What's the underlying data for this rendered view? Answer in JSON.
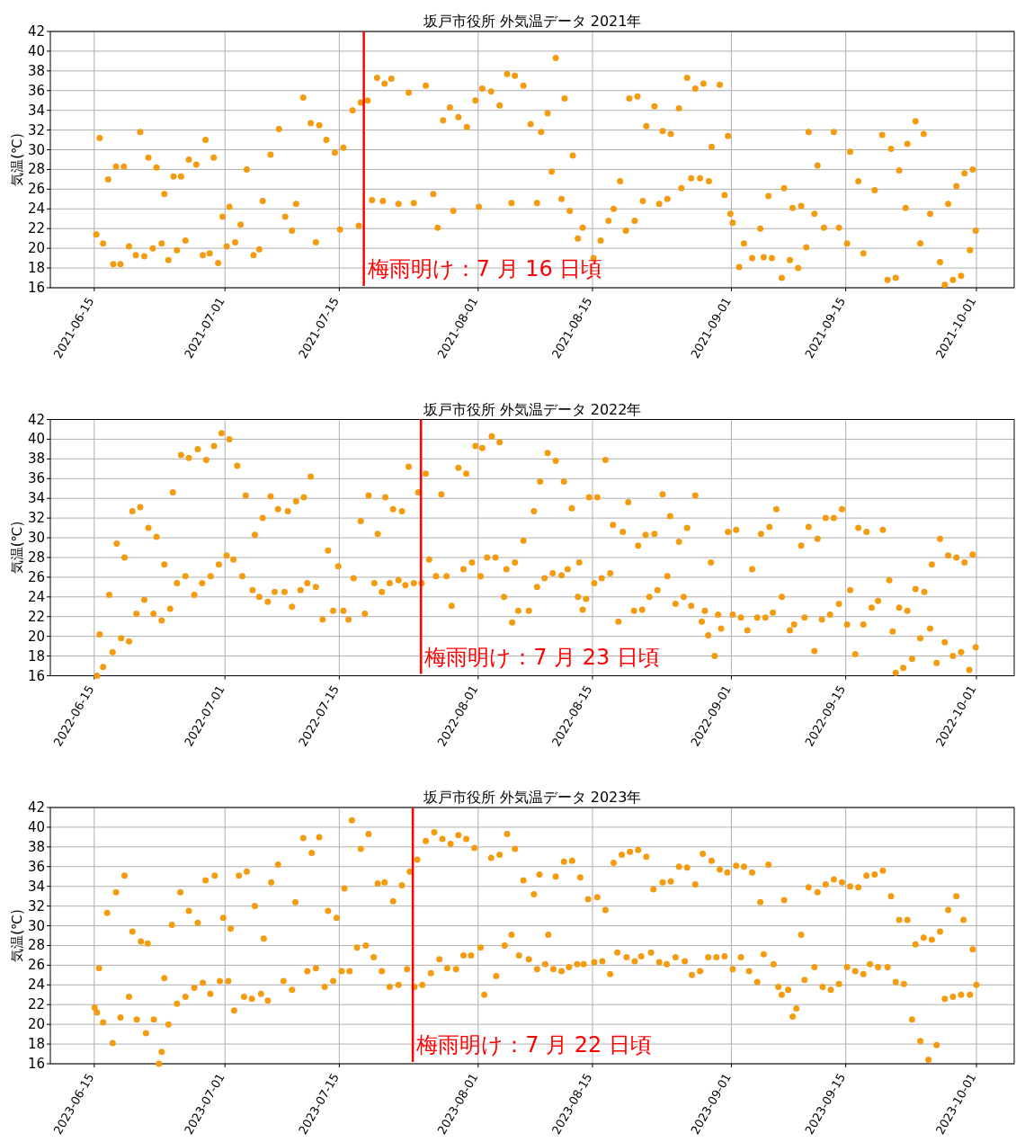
{
  "chart_data": [
    {
      "type": "scatter",
      "title": "坂戸市役所 外気温データ 2021年",
      "ylabel": "気温(℃)",
      "color": "#f39c12",
      "marker": "circle",
      "grid": true,
      "xlim": [
        "2021-06-09T15:00",
        "2021-10-05T15:00"
      ],
      "xticks": [
        "2021-06-15",
        "2021-07-01",
        "2021-07-15",
        "2021-08-01",
        "2021-08-15",
        "2021-09-01",
        "2021-09-15",
        "2021-10-01"
      ],
      "ylim": [
        16,
        42
      ],
      "yticks": [
        16,
        18,
        20,
        22,
        24,
        26,
        28,
        30,
        32,
        34,
        36,
        38,
        40,
        42
      ],
      "ref_lines": [
        {
          "axis": "x",
          "value": "2021-07-18",
          "label": "梅雨明け：7 月 16 日頃",
          "color": "#ff0000"
        }
      ],
      "x": [
        "2021-06-15T06:00",
        "2021-06-15T16:00",
        "2021-06-16T02:00",
        "2021-06-16T17:00",
        "2021-06-17T08:00",
        "2021-06-17T16:00",
        "2021-06-18T05:00",
        "2021-06-18T15:00",
        "2021-06-19T06:00",
        "2021-06-20T02:00",
        "2021-06-20T15:00",
        "2021-06-21T03:00",
        "2021-06-21T15:00",
        "2021-06-22T04:00",
        "2021-06-22T15:00",
        "2021-06-23T06:00",
        "2021-06-23T14:00",
        "2021-06-24T02:00",
        "2021-06-24T17:00",
        "2021-06-25T03:00",
        "2021-06-25T15:00",
        "2021-06-26T04:00",
        "2021-06-26T14:00",
        "2021-06-27T12:00",
        "2021-06-28T07:00",
        "2021-06-28T15:00",
        "2021-06-29T03:00",
        "2021-06-29T15:00",
        "2021-06-30T04:00",
        "2021-06-30T17:00",
        "2021-07-01T05:00",
        "2021-07-01T13:00",
        "2021-07-02T06:00",
        "2021-07-02T22:00",
        "2021-07-03T16:00",
        "2021-07-04T12:00",
        "2021-07-05T05:00",
        "2021-07-05T15:00",
        "2021-07-06T14:00",
        "2021-07-07T15:00",
        "2021-07-08T09:00",
        "2021-07-09T05:00",
        "2021-07-09T17:00",
        "2021-07-10T14:00",
        "2021-07-11T12:00",
        "2021-07-12T03:00",
        "2021-07-12T13:00",
        "2021-07-13T10:00",
        "2021-07-14T11:00",
        "2021-07-15T02:00",
        "2021-07-15T12:00",
        "2021-07-16T15:00",
        "2021-07-17T09:00",
        "2021-07-17T15:00",
        "2021-07-18T11:00",
        "2021-07-19T00:00",
        "2021-07-19T15:00",
        "2021-07-20T08:00",
        "2021-07-20T13:00",
        "2021-07-21T09:00",
        "2021-07-22T06:00",
        "2021-07-23T12:00",
        "2021-07-24T03:00",
        "2021-07-25T14:00",
        "2021-07-26T12:00",
        "2021-07-27T01:00",
        "2021-07-27T17:00",
        "2021-07-28T13:00",
        "2021-07-28T23:00",
        "2021-07-29T14:00",
        "2021-07-30T15:00",
        "2021-07-31T16:00",
        "2021-08-01T02:00",
        "2021-08-01T12:00",
        "2021-08-02T14:00",
        "2021-08-03T15:00",
        "2021-08-04T13:00",
        "2021-08-05T02:00",
        "2021-08-05T12:00",
        "2021-08-06T13:00",
        "2021-08-07T10:00",
        "2021-08-08T05:00",
        "2021-08-08T17:00",
        "2021-08-09T12:00",
        "2021-08-10T00:00",
        "2021-08-10T12:00",
        "2021-08-11T05:00",
        "2021-08-11T14:00",
        "2021-08-12T05:00",
        "2021-08-12T14:00",
        "2021-08-13T05:00",
        "2021-08-13T19:00",
        "2021-08-15T03:00",
        "2021-08-16T00:00",
        "2021-08-16T23:00",
        "2021-08-17T14:00",
        "2021-08-18T09:00",
        "2021-08-19T02:00",
        "2021-08-19T12:00",
        "2021-08-20T04:00",
        "2021-08-20T12:00",
        "2021-08-21T04:00",
        "2021-08-21T14:00",
        "2021-08-22T14:00",
        "2021-08-23T04:00",
        "2021-08-23T14:00",
        "2021-08-24T04:00",
        "2021-08-24T14:00",
        "2021-08-25T14:00",
        "2021-08-25T21:00",
        "2021-08-26T14:00",
        "2021-08-27T02:00",
        "2021-08-27T14:00",
        "2021-08-28T04:00",
        "2021-08-28T14:00",
        "2021-08-29T06:00",
        "2021-08-29T14:00",
        "2021-08-30T14:00",
        "2021-08-31T04:00",
        "2021-08-31T14:00",
        "2021-08-31T21:00",
        "2021-09-01T04:00",
        "2021-09-01T23:00",
        "2021-09-02T13:00",
        "2021-09-03T13:00",
        "2021-09-04T13:00",
        "2021-09-04T23:00",
        "2021-09-05T13:00",
        "2021-09-05T23:00",
        "2021-09-07T04:00",
        "2021-09-07T11:00",
        "2021-09-08T04:00",
        "2021-09-08T12:00",
        "2021-09-09T04:00",
        "2021-09-09T13:00",
        "2021-09-10T04:00",
        "2021-09-10T11:00",
        "2021-09-11T04:00",
        "2021-09-11T13:00",
        "2021-09-12T08:00",
        "2021-09-13T13:00",
        "2021-09-14T04:00",
        "2021-09-15T04:00",
        "2021-09-15T13:00",
        "2021-09-16T13:00",
        "2021-09-17T04:00",
        "2021-09-18T13:00",
        "2021-09-19T11:00",
        "2021-09-20T03:00",
        "2021-09-20T13:00",
        "2021-09-21T03:00",
        "2021-09-21T13:00",
        "2021-09-22T08:00",
        "2021-09-22T13:00",
        "2021-09-23T13:00",
        "2021-09-24T03:00",
        "2021-09-24T13:00",
        "2021-09-25T08:00",
        "2021-09-26T13:00",
        "2021-09-27T03:00",
        "2021-09-27T13:00",
        "2021-09-28T03:00",
        "2021-09-28T13:00",
        "2021-09-29T03:00",
        "2021-09-29T13:00",
        "2021-09-30T05:00",
        "2021-09-30T13:00",
        "2021-09-30T22:00"
      ],
      "values": [
        21.4,
        31.2,
        20.5,
        27,
        18.4,
        28.3,
        18.4,
        28.3,
        20.2,
        19.3,
        31.8,
        19.2,
        29.2,
        20,
        28.2,
        20.5,
        25.5,
        18.8,
        27.3,
        19.8,
        27.3,
        20.8,
        29,
        28.5,
        19.3,
        31,
        19.5,
        29.2,
        18.5,
        23.2,
        20.2,
        24.2,
        20.6,
        22.4,
        28,
        19.3,
        19.9,
        24.8,
        29.5,
        32.1,
        23.2,
        21.8,
        24.5,
        35.3,
        32.7,
        20.6,
        32.5,
        31,
        29.7,
        21.9,
        30.2,
        34,
        22.3,
        34.8,
        35,
        24.9,
        37.3,
        24.8,
        36.7,
        37.2,
        24.5,
        35.8,
        24.6,
        36.5,
        25.5,
        22.1,
        33,
        34.3,
        23.8,
        33.3,
        32.3,
        35,
        24.2,
        36.2,
        35.9,
        34.5,
        37.7,
        24.6,
        37.5,
        36.5,
        32.6,
        24.6,
        31.8,
        33.7,
        27.8,
        39.3,
        25,
        35.2,
        23.8,
        29.4,
        21,
        22.1,
        19,
        20.8,
        22.8,
        24,
        26.8,
        21.8,
        35.2,
        22.8,
        35.4,
        24.8,
        32.4,
        34.4,
        24.5,
        31.9,
        25,
        31.6,
        34.2,
        26.1,
        37.3,
        27.1,
        36.2,
        27.1,
        36.7,
        26.8,
        30.3,
        36.6,
        25.4,
        31.4,
        23.5,
        22.6,
        18.1,
        20.5,
        19,
        22,
        19.1,
        25.3,
        19,
        17,
        26.1,
        18.8,
        24.1,
        18,
        24.3,
        20.1,
        31.8,
        23.5,
        28.4,
        22.1,
        31.8,
        22.1,
        20.5,
        29.8,
        26.8,
        19.5,
        25.9,
        31.5,
        16.8,
        30.1,
        17,
        27.9,
        24.1,
        30.6,
        32.9,
        20.5,
        31.6,
        23.5,
        18.6,
        16.3,
        24.5,
        16.8,
        26.3,
        17.2,
        27.6,
        19.8,
        28,
        21.8
      ]
    },
    {
      "type": "scatter",
      "title": "坂戸市役所 外気温データ 2022年",
      "ylabel": "気温(℃)",
      "color": "#f39c12",
      "marker": "circle",
      "grid": true,
      "xlim": [
        "2022-06-09T15:00",
        "2022-10-05T15:00"
      ],
      "xticks": [
        "2022-06-15",
        "2022-07-01",
        "2022-07-15",
        "2022-08-01",
        "2022-08-15",
        "2022-09-01",
        "2022-09-15",
        "2022-10-01"
      ],
      "ylim": [
        16,
        42
      ],
      "yticks": [
        16,
        18,
        20,
        22,
        24,
        26,
        28,
        30,
        32,
        34,
        36,
        38,
        40,
        42
      ],
      "ref_lines": [
        {
          "axis": "x",
          "value": "2022-07-25",
          "label": "梅雨明け：7 月 23 日頃",
          "color": "#ff0000"
        }
      ],
      "x": [
        "2022-06-15T08:00",
        "2022-06-15T16:00",
        "2022-06-16T02:00",
        "2022-06-16T20:00",
        "2022-06-17T06:00",
        "2022-06-17T18:00",
        "2022-06-18T07:00",
        "2022-06-18T17:00",
        "2022-06-19T06:00",
        "2022-06-19T16:00",
        "2022-06-20T04:00",
        "2022-06-20T15:00",
        "2022-06-21T03:00",
        "2022-06-21T15:00",
        "2022-06-22T06:00",
        "2022-06-22T15:00",
        "2022-06-23T06:00",
        "2022-06-23T14:00",
        "2022-06-24T07:00",
        "2022-06-24T15:00",
        "2022-06-25T03:00",
        "2022-06-25T15:00",
        "2022-06-26T04:00",
        "2022-06-26T14:00",
        "2022-06-27T06:00",
        "2022-06-27T16:00",
        "2022-06-28T05:00",
        "2022-06-28T17:00",
        "2022-06-29T06:00",
        "2022-06-29T16:00",
        "2022-06-30T06:00",
        "2022-06-30T14:00",
        "2022-07-01T05:00",
        "2022-07-01T13:00",
        "2022-07-02T01:00",
        "2022-07-02T12:00",
        "2022-07-03T03:00",
        "2022-07-03T13:00",
        "2022-07-04T09:00",
        "2022-07-04T16:00",
        "2022-07-05T05:00",
        "2022-07-05T15:00",
        "2022-07-06T06:00",
        "2022-07-06T14:00",
        "2022-07-07T02:00",
        "2022-07-07T12:00",
        "2022-07-08T07:00",
        "2022-07-08T17:00",
        "2022-07-09T05:00",
        "2022-07-09T17:00",
        "2022-07-10T06:00",
        "2022-07-10T16:00",
        "2022-07-11T02:00",
        "2022-07-11T12:00",
        "2022-07-12T03:00",
        "2022-07-12T23:00",
        "2022-07-13T15:00",
        "2022-07-14T06:00",
        "2022-07-14T21:00",
        "2022-07-15T12:00",
        "2022-07-16T03:00",
        "2022-07-16T18:00",
        "2022-07-17T15:00",
        "2022-07-18T03:00",
        "2022-07-18T14:00",
        "2022-07-19T07:00",
        "2022-07-19T17:00",
        "2022-07-20T05:00",
        "2022-07-20T15:00",
        "2022-07-21T04:00",
        "2022-07-21T14:00",
        "2022-07-22T06:00",
        "2022-07-22T16:00",
        "2022-07-23T02:00",
        "2022-07-23T12:00",
        "2022-07-24T03:00",
        "2022-07-24T16:00",
        "2022-07-25T02:00",
        "2022-07-25T14:00",
        "2022-07-26T00:00",
        "2022-07-26T20:00",
        "2022-07-27T12:00",
        "2022-07-28T03:00",
        "2022-07-28T18:00",
        "2022-07-29T14:00",
        "2022-07-30T05:00",
        "2022-07-30T13:00",
        "2022-07-31T06:00",
        "2022-07-31T16:00",
        "2022-08-01T07:00",
        "2022-08-01T12:00",
        "2022-08-02T02:00",
        "2022-08-02T16:00",
        "2022-08-03T03:00",
        "2022-08-03T15:00",
        "2022-08-04T04:00",
        "2022-08-04T11:00",
        "2022-08-05T04:00",
        "2022-08-05T12:00",
        "2022-08-05T22:00",
        "2022-08-06T13:00",
        "2022-08-07T05:00",
        "2022-08-07T20:00",
        "2022-08-08T05:00",
        "2022-08-08T14:00",
        "2022-08-09T03:00",
        "2022-08-09T12:00",
        "2022-08-10T03:00",
        "2022-08-10T12:00",
        "2022-08-11T05:00",
        "2022-08-11T12:00",
        "2022-08-11T23:00",
        "2022-08-12T11:00",
        "2022-08-13T05:00",
        "2022-08-13T09:00",
        "2022-08-13T19:00",
        "2022-08-14T05:00",
        "2022-08-14T14:00",
        "2022-08-15T05:00",
        "2022-08-15T14:00",
        "2022-08-16T03:00",
        "2022-08-16T14:00",
        "2022-08-17T04:00",
        "2022-08-17T12:00",
        "2022-08-18T04:00",
        "2022-08-18T17:00",
        "2022-08-19T09:00",
        "2022-08-20T02:00",
        "2022-08-20T14:00",
        "2022-08-21T02:00",
        "2022-08-21T12:00",
        "2022-08-21T23:00",
        "2022-08-22T14:00",
        "2022-08-22T23:00",
        "2022-08-23T14:00",
        "2022-08-24T04:00",
        "2022-08-24T12:00",
        "2022-08-25T04:00",
        "2022-08-25T14:00",
        "2022-08-26T04:00",
        "2022-08-26T14:00",
        "2022-08-27T02:00",
        "2022-08-27T14:00",
        "2022-08-28T09:00",
        "2022-08-28T18:00",
        "2022-08-29T04:00",
        "2022-08-29T12:00",
        "2022-08-29T23:00",
        "2022-08-30T09:00",
        "2022-08-30T18:00",
        "2022-08-31T14:00",
        "2022-09-01T04:00",
        "2022-09-01T14:00",
        "2022-09-02T04:00",
        "2022-09-02T23:00",
        "2022-09-03T13:00",
        "2022-09-04T04:00",
        "2022-09-04T15:00",
        "2022-09-05T04:00",
        "2022-09-05T16:00",
        "2022-09-06T02:00",
        "2022-09-06T12:00",
        "2022-09-07T04:00",
        "2022-09-08T04:00",
        "2022-09-08T16:00",
        "2022-09-09T13:00",
        "2022-09-09T23:00",
        "2022-09-10T11:00",
        "2022-09-11T04:00",
        "2022-09-11T13:00",
        "2022-09-12T02:00",
        "2022-09-12T13:00",
        "2022-09-13T02:00",
        "2022-09-13T13:00",
        "2022-09-14T04:00",
        "2022-09-14T13:00",
        "2022-09-15T04:00",
        "2022-09-15T13:00",
        "2022-09-16T04:00",
        "2022-09-16T13:00",
        "2022-09-17T04:00",
        "2022-09-17T13:00",
        "2022-09-18T04:00",
        "2022-09-18T23:00",
        "2022-09-19T13:00",
        "2022-09-20T08:00",
        "2022-09-20T18:00",
        "2022-09-21T03:00",
        "2022-09-21T13:00",
        "2022-09-22T01:00",
        "2022-09-22T13:00",
        "2022-09-23T03:00",
        "2022-09-23T13:00",
        "2022-09-24T03:00",
        "2022-09-24T15:00",
        "2022-09-25T08:00",
        "2022-09-25T13:00",
        "2022-09-26T03:00",
        "2022-09-26T13:00",
        "2022-09-27T03:00",
        "2022-09-27T13:00",
        "2022-09-28T03:00",
        "2022-09-28T13:00",
        "2022-09-29T03:00",
        "2022-09-29T13:00",
        "2022-09-30T03:00",
        "2022-09-30T13:00",
        "2022-09-30T22:00"
      ],
      "values": [
        16,
        20.2,
        16.9,
        24.2,
        18.4,
        29.4,
        19.8,
        28,
        19.5,
        32.7,
        22.3,
        33.1,
        23.7,
        31,
        22.3,
        30.1,
        21.6,
        27.3,
        22.8,
        34.6,
        25.4,
        38.4,
        26.1,
        38.1,
        24.2,
        39,
        25.4,
        37.9,
        26.1,
        39.3,
        27.3,
        40.6,
        28.2,
        40,
        27.8,
        37.3,
        26.1,
        34.3,
        24.7,
        30.3,
        24,
        32,
        23.5,
        34.2,
        24.5,
        32.9,
        24.5,
        32.7,
        23,
        33.7,
        24.7,
        34.1,
        25.4,
        36.2,
        25,
        21.7,
        28.7,
        22.6,
        27.1,
        22.6,
        21.7,
        25.9,
        31.7,
        22.3,
        34.3,
        25.4,
        30.4,
        24.5,
        34.1,
        25.4,
        32.9,
        25.7,
        32.7,
        25.2,
        37.2,
        25.4,
        34.6,
        25.4,
        36.5,
        27.8,
        26.1,
        34.4,
        26.1,
        23.1,
        37.1,
        26.8,
        36.5,
        27.5,
        39.3,
        26.1,
        39.1,
        28,
        40.3,
        28,
        39.7,
        24,
        26.8,
        21.4,
        27.5,
        22.6,
        29.7,
        22.6,
        32.7,
        25,
        35.7,
        25.9,
        38.6,
        26.4,
        37.8,
        26.2,
        35.7,
        26.8,
        33,
        24,
        27.5,
        22.7,
        23.8,
        34.1,
        25.4,
        34.1,
        25.9,
        37.9,
        26.4,
        31.3,
        21.5,
        30.6,
        33.6,
        22.6,
        29.2,
        22.7,
        30.3,
        24,
        30.4,
        24.7,
        34.4,
        26.1,
        32.2,
        23.3,
        29.6,
        24,
        31,
        23.1,
        34.3,
        21.5,
        22.6,
        20.1,
        27.5,
        18,
        22.2,
        20.8,
        30.6,
        22.2,
        30.8,
        21.9,
        20.6,
        26.8,
        21.9,
        30.4,
        21.9,
        31.1,
        22.4,
        32.9,
        24,
        20.6,
        21.2,
        29.2,
        21.9,
        31.1,
        18.5,
        29.9,
        21.7,
        32,
        22.2,
        32,
        23.3,
        32.9,
        21.2,
        24.7,
        18.2,
        31,
        21.2,
        30.6,
        22.9,
        23.6,
        30.8,
        25.7,
        20.5,
        16.3,
        22.9,
        16.8,
        22.6,
        17.7,
        24.8,
        19.8,
        24.5,
        20.8,
        27.3,
        17.3,
        29.9,
        19.4,
        28.2,
        18,
        28,
        18.4,
        27.5,
        16.6,
        28.3,
        18.9
      ]
    },
    {
      "type": "scatter",
      "title": "坂戸市役所 外気温データ 2023年",
      "ylabel": "気温(℃)",
      "color": "#f39c12",
      "marker": "circle",
      "grid": true,
      "xlim": [
        "2023-06-09T15:00",
        "2023-10-05T15:00"
      ],
      "xticks": [
        "2023-06-15",
        "2023-07-01",
        "2023-07-15",
        "2023-08-01",
        "2023-08-15",
        "2023-09-01",
        "2023-09-15",
        "2023-10-01"
      ],
      "ylim": [
        16,
        42
      ],
      "yticks": [
        16,
        18,
        20,
        22,
        24,
        26,
        28,
        30,
        32,
        34,
        36,
        38,
        40,
        42
      ],
      "ref_lines": [
        {
          "axis": "x",
          "value": "2023-07-24",
          "label": "梅雨明け：7 月 22 日頃",
          "color": "#ff0000"
        }
      ],
      "x": [
        "2023-06-15T01:00",
        "2023-06-15T08:00",
        "2023-06-15T14:00",
        "2023-06-16T02:00",
        "2023-06-16T14:00",
        "2023-06-17T06:00",
        "2023-06-17T16:00",
        "2023-06-18T05:00",
        "2023-06-18T17:00",
        "2023-06-19T06:00",
        "2023-06-19T16:00",
        "2023-06-20T05:00",
        "2023-06-20T17:00",
        "2023-06-21T08:00",
        "2023-06-21T13:00",
        "2023-06-22T07:00",
        "2023-06-22T22:00",
        "2023-06-23T06:00",
        "2023-06-23T14:00",
        "2023-06-24T02:00",
        "2023-06-24T12:00",
        "2023-06-25T03:00",
        "2023-06-25T13:00",
        "2023-06-26T04:00",
        "2023-06-26T14:00",
        "2023-06-27T06:00",
        "2023-06-27T16:00",
        "2023-06-28T07:00",
        "2023-06-28T15:00",
        "2023-06-29T05:00",
        "2023-06-29T18:00",
        "2023-06-30T09:00",
        "2023-06-30T19:00",
        "2023-07-01T10:00",
        "2023-07-01T17:00",
        "2023-07-02T03:00",
        "2023-07-02T17:00",
        "2023-07-03T08:00",
        "2023-07-03T16:00",
        "2023-07-04T07:00",
        "2023-07-04T16:00",
        "2023-07-05T10:00",
        "2023-07-05T18:00",
        "2023-07-06T06:00",
        "2023-07-06T16:00",
        "2023-07-07T12:00",
        "2023-07-08T04:00",
        "2023-07-09T05:00",
        "2023-07-09T15:00",
        "2023-07-10T14:00",
        "2023-07-11T02:00",
        "2023-07-11T15:00",
        "2023-07-12T03:00",
        "2023-07-12T13:00",
        "2023-07-13T05:00",
        "2023-07-13T15:00",
        "2023-07-14T06:00",
        "2023-07-14T16:00",
        "2023-07-15T07:00",
        "2023-07-15T15:00",
        "2023-07-16T06:00",
        "2023-07-16T13:00",
        "2023-07-17T04:00",
        "2023-07-17T15:00",
        "2023-07-18T06:00",
        "2023-07-18T14:00",
        "2023-07-19T05:00",
        "2023-07-19T17:00",
        "2023-07-20T05:00",
        "2023-07-20T13:00",
        "2023-07-21T04:00",
        "2023-07-21T14:00",
        "2023-07-22T06:00",
        "2023-07-22T16:00",
        "2023-07-23T07:00",
        "2023-07-23T15:00",
        "2023-07-24T05:00",
        "2023-07-24T13:00",
        "2023-07-25T04:00",
        "2023-07-25T14:00",
        "2023-07-26T05:00",
        "2023-07-26T15:00",
        "2023-07-27T06:00",
        "2023-07-27T15:00",
        "2023-07-28T05:00",
        "2023-07-28T15:00",
        "2023-07-29T07:00",
        "2023-07-29T14:00",
        "2023-07-30T05:00",
        "2023-07-30T13:00",
        "2023-07-31T03:00",
        "2023-07-31T13:00",
        "2023-08-01T07:00",
        "2023-08-01T18:00",
        "2023-08-02T14:00",
        "2023-08-03T05:00",
        "2023-08-03T15:00",
        "2023-08-04T06:00",
        "2023-08-04T13:00",
        "2023-08-05T02:00",
        "2023-08-05T12:00",
        "2023-08-06T00:00",
        "2023-08-06T13:00",
        "2023-08-07T05:00",
        "2023-08-07T20:00",
        "2023-08-08T05:00",
        "2023-08-08T12:00",
        "2023-08-09T05:00",
        "2023-08-09T14:00",
        "2023-08-10T05:00",
        "2023-08-10T12:00",
        "2023-08-11T05:00",
        "2023-08-11T12:00",
        "2023-08-12T03:00",
        "2023-08-12T12:00",
        "2023-08-13T03:00",
        "2023-08-13T12:00",
        "2023-08-13T22:00",
        "2023-08-14T11:00",
        "2023-08-15T05:00",
        "2023-08-15T14:00",
        "2023-08-16T05:00",
        "2023-08-16T14:00",
        "2023-08-17T04:00",
        "2023-08-17T14:00",
        "2023-08-18T01:00",
        "2023-08-18T14:00",
        "2023-08-19T04:00",
        "2023-08-19T14:00",
        "2023-08-20T04:00",
        "2023-08-20T14:00",
        "2023-08-20T23:00",
        "2023-08-21T14:00",
        "2023-08-22T04:00",
        "2023-08-22T11:00",
        "2023-08-23T04:00",
        "2023-08-23T14:00",
        "2023-08-24T02:00",
        "2023-08-24T14:00",
        "2023-08-25T04:00",
        "2023-08-25T14:00",
        "2023-08-26T07:00",
        "2023-08-26T14:00",
        "2023-08-27T04:00",
        "2023-08-27T14:00",
        "2023-08-28T04:00",
        "2023-08-28T12:00",
        "2023-08-29T04:00",
        "2023-08-29T14:00",
        "2023-08-30T04:00",
        "2023-08-30T14:00",
        "2023-08-31T04:00",
        "2023-08-31T12:00",
        "2023-09-01T04:00",
        "2023-09-01T14:00",
        "2023-09-02T04:00",
        "2023-09-02T13:00",
        "2023-09-03T04:00",
        "2023-09-03T13:00",
        "2023-09-04T04:00",
        "2023-09-04T13:00",
        "2023-09-04T23:00",
        "2023-09-05T13:00",
        "2023-09-06T04:00",
        "2023-09-06T18:00",
        "2023-09-07T04:00",
        "2023-09-07T11:00",
        "2023-09-07T23:00",
        "2023-09-08T12:00",
        "2023-09-08T23:00",
        "2023-09-09T13:00",
        "2023-09-09T23:00",
        "2023-09-10T11:00",
        "2023-09-11T04:00",
        "2023-09-11T13:00",
        "2023-09-12T04:00",
        "2023-09-12T13:00",
        "2023-09-13T04:00",
        "2023-09-13T13:00",
        "2023-09-14T04:00",
        "2023-09-14T13:00",
        "2023-09-15T04:00",
        "2023-09-15T13:00",
        "2023-09-16T04:00",
        "2023-09-16T13:00",
        "2023-09-17T04:00",
        "2023-09-17T13:00",
        "2023-09-17T23:00",
        "2023-09-18T13:00",
        "2023-09-18T23:00",
        "2023-09-19T13:00",
        "2023-09-20T03:00",
        "2023-09-20T13:00",
        "2023-09-21T03:00",
        "2023-09-21T13:00",
        "2023-09-22T03:00",
        "2023-09-22T13:00",
        "2023-09-23T03:00",
        "2023-09-23T13:00",
        "2023-09-24T03:00",
        "2023-09-24T13:00",
        "2023-09-25T03:00",
        "2023-09-25T13:00",
        "2023-09-26T03:00",
        "2023-09-26T13:00",
        "2023-09-27T03:00",
        "2023-09-27T13:00",
        "2023-09-28T03:00",
        "2023-09-28T13:00",
        "2023-09-29T03:00",
        "2023-09-29T10:00",
        "2023-09-30T05:00",
        "2023-09-30T13:00",
        "2023-10-01T00:00"
      ],
      "values": [
        21.7,
        21.2,
        25.7,
        20.2,
        31.3,
        18.1,
        33.4,
        20.7,
        35.1,
        22.8,
        29.4,
        20.5,
        28.4,
        19.1,
        28.2,
        20.5,
        16,
        17.2,
        24.7,
        20,
        30.1,
        22.1,
        33.4,
        22.8,
        31.5,
        23.7,
        30.3,
        24.2,
        34.6,
        23.1,
        35.1,
        24.4,
        30.8,
        24.4,
        29.7,
        21.4,
        35.1,
        22.8,
        35.5,
        22.6,
        32,
        23.1,
        28.7,
        22.4,
        34.4,
        36.2,
        24.4,
        23.5,
        32.4,
        38.9,
        25.4,
        37.4,
        25.7,
        39,
        23.8,
        31.5,
        24.4,
        30.8,
        25.4,
        33.8,
        25.4,
        40.7,
        27.8,
        37.8,
        28,
        39.3,
        26.8,
        34.3,
        25.4,
        34.4,
        23.8,
        32.5,
        24,
        34.1,
        25.6,
        35.5,
        23.8,
        36.7,
        24,
        38.6,
        25.2,
        39.5,
        26.6,
        38.8,
        25.7,
        38.3,
        25.6,
        39.2,
        27,
        38.8,
        27,
        37.9,
        27.8,
        23,
        36.9,
        24.9,
        37.2,
        28,
        39.3,
        29.1,
        37.8,
        27,
        34.6,
        26.6,
        33.2,
        25.6,
        35.2,
        26.1,
        29.1,
        25.6,
        35,
        25.4,
        36.5,
        25.8,
        36.6,
        26.1,
        34.9,
        26.1,
        32.7,
        26.3,
        32.9,
        26.4,
        31.6,
        25.1,
        36.4,
        27.3,
        37.2,
        26.8,
        37.5,
        26.4,
        37.7,
        26.9,
        37,
        27.3,
        33.7,
        26.3,
        34.4,
        26.1,
        34.5,
        26.8,
        36,
        26.4,
        35.9,
        25,
        34.2,
        25.4,
        37.3,
        26.8,
        36.6,
        26.8,
        35.7,
        26.9,
        35.4,
        25.6,
        36.1,
        26.8,
        36,
        25.4,
        35.4,
        24.3,
        32.4,
        27.1,
        36.2,
        26.1,
        23.8,
        23,
        32.6,
        23.5,
        20.8,
        21.6,
        29.1,
        24.5,
        33.9,
        25.8,
        33.4,
        23.8,
        34.2,
        23.5,
        34.7,
        24.1,
        34.4,
        25.8,
        34,
        25.4,
        33.9,
        25.1,
        35.1,
        26.1,
        35.2,
        25.8,
        35.6,
        25.8,
        33,
        24.3,
        30.6,
        24.1,
        30.6,
        20.5,
        28.1,
        18.3,
        28.8,
        16.4,
        28.6,
        17.9,
        29.4,
        22.6,
        31.6,
        22.8,
        33,
        23,
        30.6,
        23,
        27.6,
        24
      ]
    }
  ]
}
